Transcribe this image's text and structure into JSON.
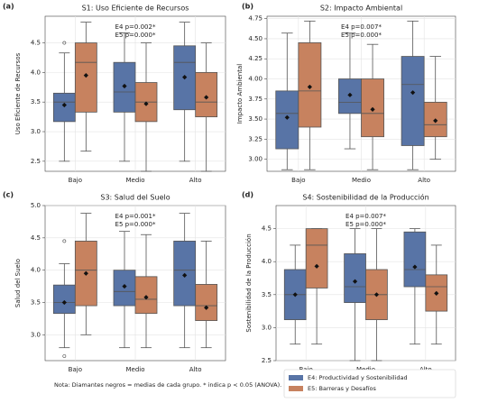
{
  "chart_data": [
    {
      "type": "box",
      "label": "(a)",
      "title": "S1: Uso Eficiente de Recursos",
      "ylabel": "Uso Eficiente de Recursos",
      "categories": [
        "Bajo",
        "Medio",
        "Alto"
      ],
      "ylim": [
        2.33,
        4.95
      ],
      "yticks": [
        2.5,
        {
          "value": 3,
          "label": "3.0"
        },
        3.5,
        {
          "value": 4,
          "label": "4.0"
        },
        4.5
      ],
      "annotations": [
        "E4 p=0.002*",
        "E5 p=0.000*"
      ],
      "series": [
        {
          "color": "#5874a6",
          "boxes": [
            {
              "whislo": 2.5,
              "q1": 3.17,
              "med": 3.5,
              "q3": 3.65,
              "whishi": 4.33,
              "mean": 3.45,
              "fliers": [
                4.5
              ]
            },
            {
              "whislo": 2.5,
              "q1": 3.33,
              "med": 3.67,
              "q3": 4.17,
              "whishi": 4.67,
              "mean": 3.77
            },
            {
              "whislo": 2.5,
              "q1": 3.37,
              "med": 4.17,
              "q3": 4.45,
              "whishi": 4.85,
              "mean": 3.92
            }
          ]
        },
        {
          "color": "#c7825f",
          "boxes": [
            {
              "whislo": 2.67,
              "q1": 3.33,
              "med": 4.17,
              "q3": 4.5,
              "whishi": 4.85,
              "mean": 3.95
            },
            {
              "whislo": 2.33,
              "q1": 3.17,
              "med": 3.5,
              "q3": 3.83,
              "whishi": 4.5,
              "mean": 3.47
            },
            {
              "whislo": 2.33,
              "q1": 3.25,
              "med": 3.5,
              "q3": 4.0,
              "whishi": 4.5,
              "mean": 3.58
            }
          ]
        }
      ]
    },
    {
      "type": "box",
      "label": "(b)",
      "title": "S2: Impacto Ambiental",
      "ylabel": "Impacto Ambiental",
      "categories": [
        "Bajo",
        "Medio",
        "Alto"
      ],
      "ylim": [
        2.85,
        4.78
      ],
      "yticks": [
        {
          "value": 3,
          "label": "3.00"
        },
        3.25,
        {
          "value": 3.5,
          "label": "3.50"
        },
        3.75,
        {
          "value": 4,
          "label": "4.00"
        },
        4.25,
        {
          "value": 4.5,
          "label": "4.50"
        },
        4.75
      ],
      "annotations": [
        "E4 p=0.007*",
        "E5 p=0.000*"
      ],
      "series": [
        {
          "color": "#5874a6",
          "boxes": [
            {
              "whislo": 2.87,
              "q1": 3.13,
              "med": 3.57,
              "q3": 3.85,
              "whishi": 4.57,
              "mean": 3.52
            },
            {
              "whislo": 3.13,
              "q1": 3.57,
              "med": 3.71,
              "q3": 4.0,
              "whishi": 4.57,
              "mean": 3.8
            },
            {
              "whislo": 2.87,
              "q1": 3.17,
              "med": 3.93,
              "q3": 4.28,
              "whishi": 4.72,
              "mean": 3.83
            }
          ]
        },
        {
          "color": "#c7825f",
          "boxes": [
            {
              "whislo": 2.87,
              "q1": 3.4,
              "med": 3.85,
              "q3": 4.45,
              "whishi": 4.72,
              "mean": 3.9
            },
            {
              "whislo": 2.87,
              "q1": 3.28,
              "med": 3.57,
              "q3": 4.0,
              "whishi": 4.43,
              "mean": 3.62
            },
            {
              "whislo": 3.0,
              "q1": 3.28,
              "med": 3.43,
              "q3": 3.71,
              "whishi": 4.28,
              "mean": 3.48
            }
          ]
        }
      ]
    },
    {
      "type": "box",
      "label": "(c)",
      "title": "S3: Salud del Suelo",
      "ylabel": "Salud del Suelo",
      "categories": [
        "Bajo",
        "Medio",
        "Alto"
      ],
      "ylim": [
        2.6,
        5.0
      ],
      "yticks": [
        {
          "value": 3,
          "label": "3.0"
        },
        3.5,
        {
          "value": 4,
          "label": "4.0"
        },
        4.5,
        {
          "value": 5,
          "label": "5.0"
        }
      ],
      "annotations": [
        "E4 p=0.001*",
        "E5 p=0.000*"
      ],
      "series": [
        {
          "color": "#5874a6",
          "boxes": [
            {
              "whislo": 2.8,
              "q1": 3.33,
              "med": 3.5,
              "q3": 3.77,
              "whishi": 4.1,
              "mean": 3.5,
              "fliers": [
                4.45,
                2.67
              ]
            },
            {
              "whislo": 2.8,
              "q1": 3.45,
              "med": 3.67,
              "q3": 4.0,
              "whishi": 4.6,
              "mean": 3.75
            },
            {
              "whislo": 2.8,
              "q1": 3.45,
              "med": 4.0,
              "q3": 4.45,
              "whishi": 4.88,
              "mean": 3.92
            }
          ]
        },
        {
          "color": "#c7825f",
          "boxes": [
            {
              "whislo": 3.0,
              "q1": 3.45,
              "med": 4.0,
              "q3": 4.45,
              "whishi": 4.88,
              "mean": 3.95
            },
            {
              "whislo": 2.8,
              "q1": 3.33,
              "med": 3.55,
              "q3": 3.9,
              "whishi": 4.55,
              "mean": 3.58
            },
            {
              "whislo": 2.8,
              "q1": 3.22,
              "med": 3.45,
              "q3": 3.78,
              "whishi": 4.45,
              "mean": 3.42
            }
          ]
        }
      ]
    },
    {
      "type": "box",
      "label": "(d)",
      "title": "S4: Sostenibilidad de la Producción",
      "ylabel": "Sostenibilidad de la Producción",
      "categories": [
        "Bajo",
        "Medio",
        "Alto"
      ],
      "ylim": [
        2.5,
        4.85
      ],
      "yticks": [
        2.5,
        {
          "value": 3,
          "label": "3.0"
        },
        3.5,
        {
          "value": 4,
          "label": "4.0"
        },
        4.5
      ],
      "annotations": [
        "E4 p=0.007*",
        "E5 p=0.000*"
      ],
      "legend": "lower right",
      "series": [
        {
          "name": "E4: Productividad y Sostenibilidad",
          "color": "#5874a6",
          "boxes": [
            {
              "whislo": 2.75,
              "q1": 3.12,
              "med": 3.5,
              "q3": 3.88,
              "whishi": 4.25,
              "mean": 3.5
            },
            {
              "whislo": 2.5,
              "q1": 3.38,
              "med": 3.62,
              "q3": 4.12,
              "whishi": 4.5,
              "mean": 3.7
            },
            {
              "whislo": 2.75,
              "q1": 3.62,
              "med": 3.88,
              "q3": 4.45,
              "whishi": 4.5,
              "mean": 3.92
            }
          ]
        },
        {
          "name": "E5: Barreras y Desafíos",
          "color": "#c7825f",
          "boxes": [
            {
              "whislo": 2.75,
              "q1": 3.6,
              "med": 4.25,
              "q3": 4.5,
              "whishi": 4.5,
              "mean": 3.93
            },
            {
              "whislo": 2.5,
              "q1": 3.12,
              "med": 3.5,
              "q3": 3.88,
              "whishi": 4.5,
              "mean": 3.5
            },
            {
              "whislo": 2.75,
              "q1": 3.25,
              "med": 3.62,
              "q3": 3.8,
              "whishi": 4.25,
              "mean": 3.52
            }
          ]
        }
      ]
    }
  ],
  "note": "Nota: Diamantes negros = medias de cada grupo. * indica p < 0.05 (ANOVA)."
}
